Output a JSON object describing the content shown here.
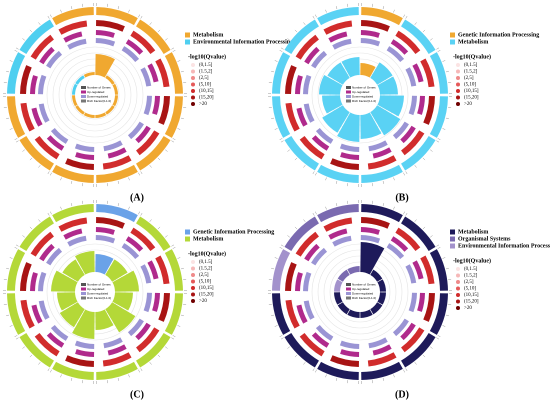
{
  "legend_title": "-log10(Qvalue)",
  "bins": [
    {
      "label": "(0,1.5]",
      "color": "#fbe3e3"
    },
    {
      "label": "(1.5,2]",
      "color": "#f6b8b8"
    },
    {
      "label": "(2,5]",
      "color": "#ef8a8a"
    },
    {
      "label": "(5,10]",
      "color": "#e55a5a"
    },
    {
      "label": "(10,15]",
      "color": "#d12c2c"
    },
    {
      "label": "(15,20]",
      "color": "#a81414"
    },
    {
      "label": ">20",
      "color": "#700000"
    }
  ],
  "inner_legend": [
    "Number of Genes",
    "Up-regulated",
    "Down-regulated",
    "Rich Factor(0-1.0)"
  ],
  "panels": [
    {
      "label": "(A)",
      "groups": [
        {
          "name": "Metabolism",
          "color": "#f0a830"
        },
        {
          "name": "Environmental Information Processing",
          "color": "#4fcff0"
        }
      ],
      "sectors": [
        {
          "group": 0,
          "rich": 0.7
        },
        {
          "group": 0,
          "rich": 0.1
        },
        {
          "group": 0,
          "rich": 0.1
        },
        {
          "group": 0,
          "rich": 0.1
        },
        {
          "group": 0,
          "rich": 0.1
        },
        {
          "group": 0,
          "rich": 0.1
        },
        {
          "group": 0,
          "rich": 0.1
        },
        {
          "group": 0,
          "rich": 0.1
        },
        {
          "group": 0,
          "rich": 0.1
        },
        {
          "group": 1,
          "rich": 0.1
        },
        {
          "group": 1,
          "rich": 0.1
        },
        {
          "group": 0,
          "rich": 0.1
        }
      ]
    },
    {
      "label": "(B)",
      "groups": [
        {
          "name": "Genetic Information Processing",
          "color": "#f0a830"
        },
        {
          "name": "Metabolism",
          "color": "#5ad2f4"
        }
      ],
      "sectors": [
        {
          "group": 0,
          "rich": 0.4
        },
        {
          "group": 1,
          "rich": 0.6
        },
        {
          "group": 1,
          "rich": 0.6
        },
        {
          "group": 1,
          "rich": 0.8
        },
        {
          "group": 1,
          "rich": 0.9
        },
        {
          "group": 1,
          "rich": 0.8
        },
        {
          "group": 1,
          "rich": 0.9
        },
        {
          "group": 1,
          "rich": 0.8
        },
        {
          "group": 1,
          "rich": 0.6
        },
        {
          "group": 1,
          "rich": 0.7
        },
        {
          "group": 1,
          "rich": 0.6
        },
        {
          "group": 1,
          "rich": 0.6
        }
      ]
    },
    {
      "label": "(C)",
      "groups": [
        {
          "name": "Genetic Information Processing",
          "color": "#6aa2e8"
        },
        {
          "name": "Metabolism",
          "color": "#b4d838"
        }
      ],
      "sectors": [
        {
          "group": 0,
          "rich": 0.6
        },
        {
          "group": 1,
          "rich": 0.6
        },
        {
          "group": 1,
          "rich": 0.8
        },
        {
          "group": 1,
          "rich": 0.6
        },
        {
          "group": 1,
          "rich": 0.9
        },
        {
          "group": 1,
          "rich": 0.6
        },
        {
          "group": 1,
          "rich": 0.9
        },
        {
          "group": 1,
          "rich": 0.7
        },
        {
          "group": 1,
          "rich": 0.6
        },
        {
          "group": 1,
          "rich": 0.8
        },
        {
          "group": 1,
          "rich": 0.6
        },
        {
          "group": 1,
          "rich": 0.7
        }
      ]
    },
    {
      "label": "(D)",
      "groups": [
        {
          "name": "Metabolism",
          "color": "#1e1a5a"
        },
        {
          "name": "Organismal Systems",
          "color": "#7a6ab0"
        },
        {
          "name": "Environmental Information Processing",
          "color": "#a392cc"
        }
      ],
      "sectors": [
        {
          "group": 0,
          "rich": 1.0
        },
        {
          "group": 0,
          "rich": 0.2
        },
        {
          "group": 0,
          "rich": 0.2
        },
        {
          "group": 0,
          "rich": 0.2
        },
        {
          "group": 0,
          "rich": 0.2
        },
        {
          "group": 0,
          "rich": 0.2
        },
        {
          "group": 0,
          "rich": 0.2
        },
        {
          "group": 0,
          "rich": 0.2
        },
        {
          "group": 0,
          "rich": 0.2
        },
        {
          "group": 2,
          "rich": 0.2
        },
        {
          "group": 1,
          "rich": 0.2
        },
        {
          "group": 1,
          "rich": 0.2
        }
      ]
    }
  ]
}
